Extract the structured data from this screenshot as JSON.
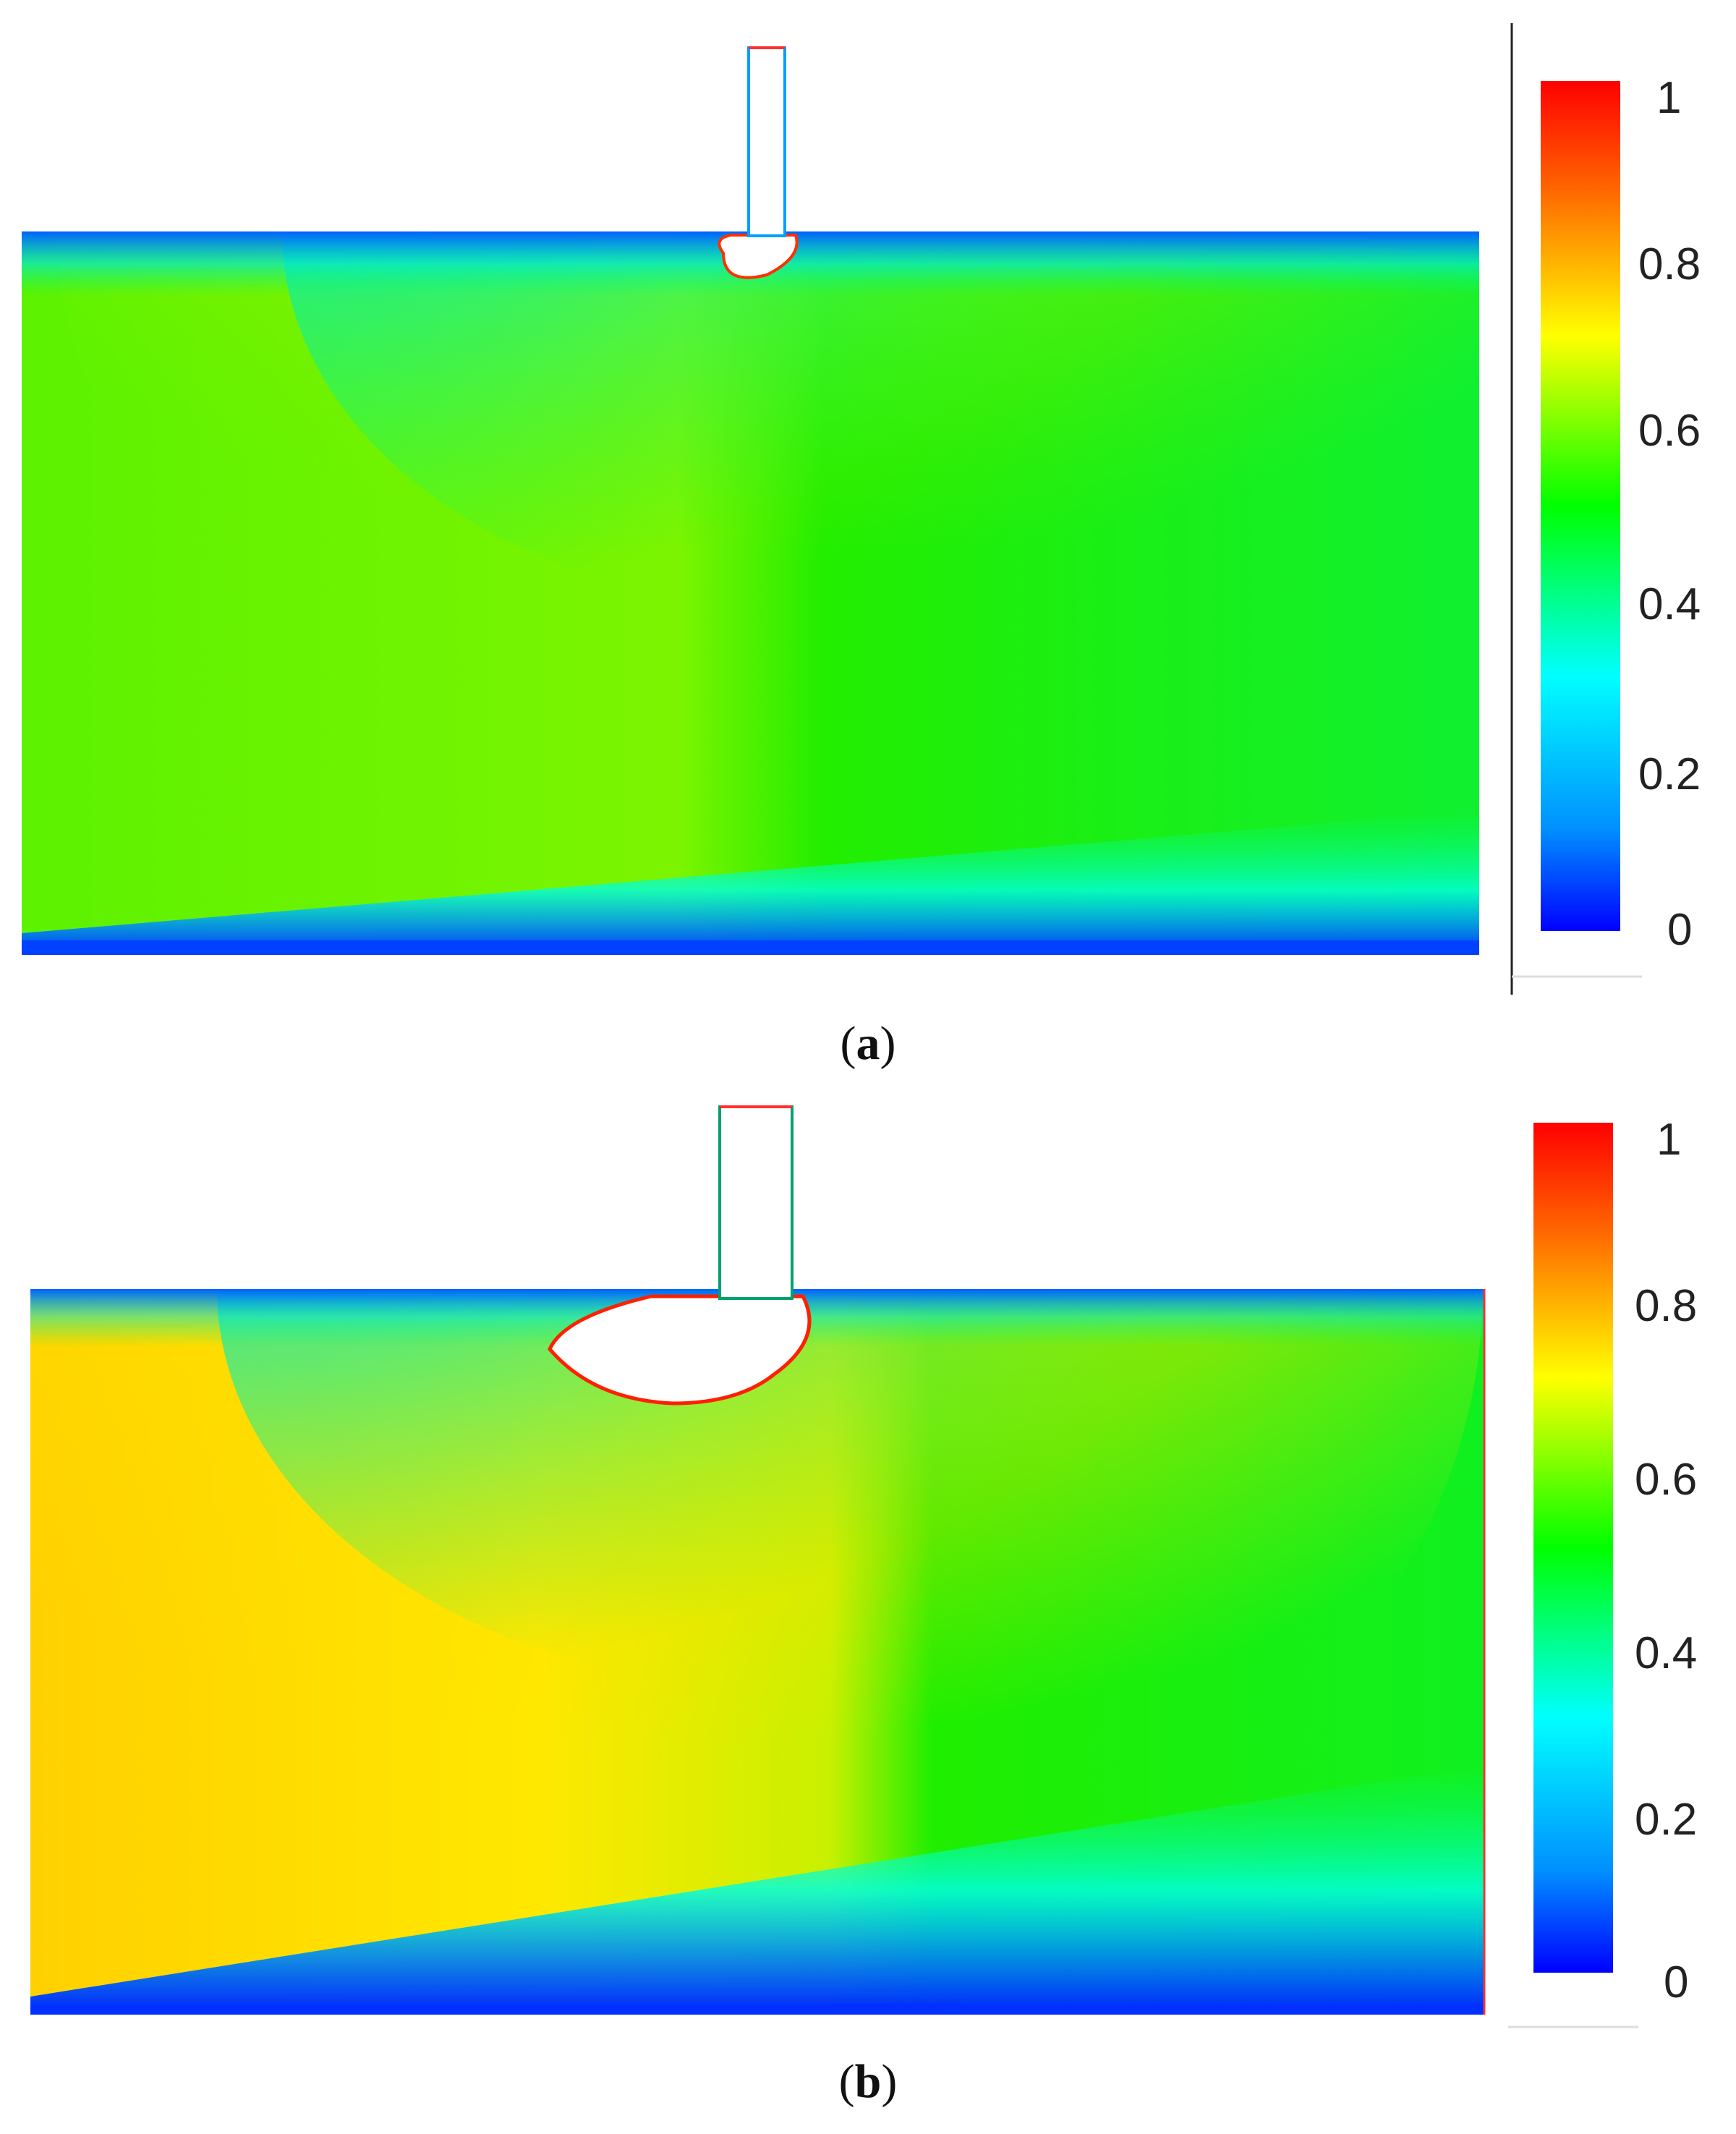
{
  "colors": {
    "scale_low": "#0000ff",
    "scale_mid_low": "#00ffff",
    "scale_mid": "#00ff00",
    "scale_mid_high": "#ffff00",
    "scale_high": "#ff0000",
    "background": "#ffffff"
  },
  "panels": [
    {
      "id": "a",
      "caption_open": "(",
      "caption_letter": "a",
      "caption_close": ")",
      "colorbar": {
        "ticks": [
          "1",
          "0.8",
          "0.6",
          "0.4",
          "0.2",
          "0"
        ],
        "range": [
          0,
          1
        ]
      }
    },
    {
      "id": "b",
      "caption_open": "(",
      "caption_letter": "b",
      "caption_close": ")",
      "colorbar": {
        "ticks": [
          "1",
          "0.8",
          "0.6",
          "0.4",
          "0.2",
          "0"
        ],
        "range": [
          0,
          1
        ]
      }
    }
  ]
}
